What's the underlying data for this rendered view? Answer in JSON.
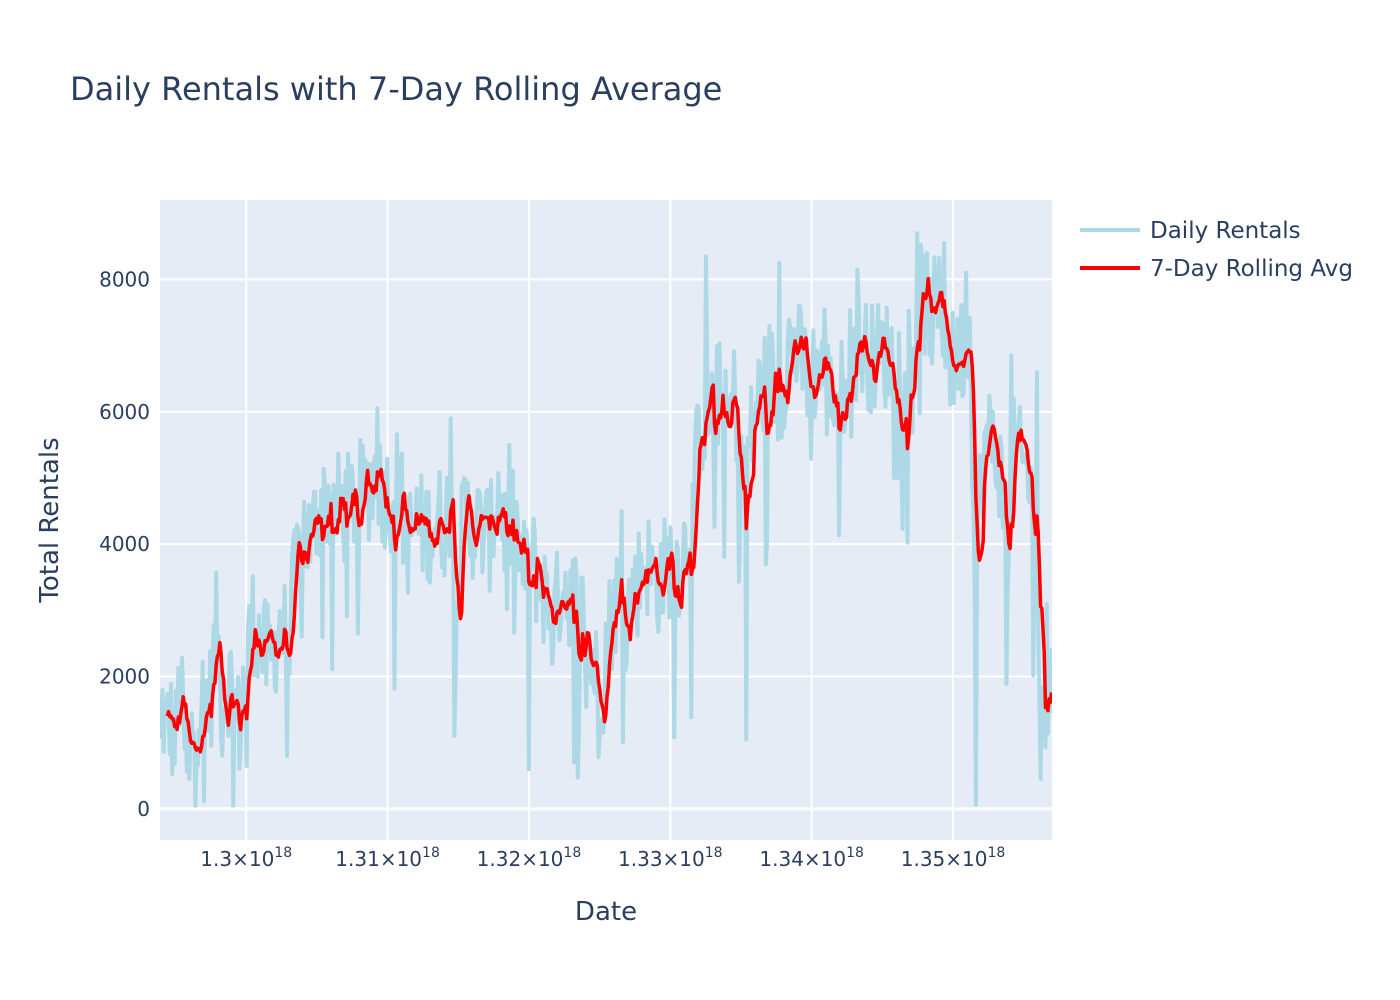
{
  "chart_data": {
    "type": "line",
    "title": "Daily Rentals with 7-Day Rolling Average",
    "xlabel": "Date",
    "ylabel": "Total Rentals",
    "x_note": "x values are dates in nanoseconds since epoch (axis prints 1.xx×10^18)",
    "xlim": [
      1.2939e+18,
      1.357e+18
    ],
    "ylim": [
      -470,
      9200
    ],
    "x_ticks": [
      {
        "value": 1.3e+18,
        "mantissa": "1.3",
        "exp": "18"
      },
      {
        "value": 1.31e+18,
        "mantissa": "1.31",
        "exp": "18"
      },
      {
        "value": 1.32e+18,
        "mantissa": "1.32",
        "exp": "18"
      },
      {
        "value": 1.33e+18,
        "mantissa": "1.33",
        "exp": "18"
      },
      {
        "value": 1.34e+18,
        "mantissa": "1.34",
        "exp": "18"
      },
      {
        "value": 1.35e+18,
        "mantissa": "1.35",
        "exp": "18"
      }
    ],
    "y_ticks": [
      {
        "value": 0,
        "label": "0"
      },
      {
        "value": 2000,
        "label": "2000"
      },
      {
        "value": 4000,
        "label": "4000"
      },
      {
        "value": 6000,
        "label": "6000"
      },
      {
        "value": 8000,
        "label": "8000"
      }
    ],
    "grid": true,
    "legend_position": "top-right",
    "x_start": 1.2939e+18,
    "x_step": 86400000000000.0,
    "series": [
      {
        "name": "Daily Rentals",
        "color": "#add8e6",
        "anchors": [
          [
            1.2939e+18,
            800
          ],
          [
            1.2941e+18,
            1600
          ],
          [
            1.2943e+18,
            1000
          ],
          [
            1.2945e+18,
            1400
          ],
          [
            1.295e+18,
            1000
          ],
          [
            1.2953e+18,
            1900
          ],
          [
            1.2956e+18,
            1100
          ],
          [
            1.2958e+18,
            500
          ],
          [
            1.2962e+18,
            1200
          ],
          [
            1.2967e+18,
            1600
          ],
          [
            1.2975e+18,
            1700
          ],
          [
            1.2979e+18,
            2800
          ],
          [
            1.2983e+18,
            1500
          ],
          [
            1.2988e+18,
            2000
          ],
          [
            1.2995e+18,
            1200
          ],
          [
            1.2999e+18,
            2100
          ],
          [
            1.3005e+18,
            2900
          ],
          [
            1.3011e+18,
            2400
          ],
          [
            1.3018e+18,
            2200
          ],
          [
            1.3023e+18,
            2800
          ],
          [
            1.3028e+18,
            2600
          ],
          [
            1.3035e+18,
            3500
          ],
          [
            1.304e+18,
            4300
          ],
          [
            1.3046e+18,
            4000
          ],
          [
            1.305e+18,
            4500
          ],
          [
            1.3056e+18,
            4700
          ],
          [
            1.3063e+18,
            4600
          ],
          [
            1.307e+18,
            4500
          ],
          [
            1.3078e+18,
            4700
          ],
          [
            1.3085e+18,
            4800
          ],
          [
            1.3092e+18,
            5100
          ],
          [
            1.3096e+18,
            4800
          ],
          [
            1.3103e+18,
            4700
          ],
          [
            1.3108e+18,
            5000
          ],
          [
            1.3113e+18,
            4000
          ],
          [
            1.312e+18,
            4300
          ],
          [
            1.3128e+18,
            4200
          ],
          [
            1.3135e+18,
            4400
          ],
          [
            1.314e+18,
            4300
          ],
          [
            1.3145e+18,
            4700
          ],
          [
            1.315e+18,
            3700
          ],
          [
            1.3155e+18,
            4500
          ],
          [
            1.316e+18,
            4300
          ],
          [
            1.3167e+18,
            4200
          ],
          [
            1.3173e+18,
            4100
          ],
          [
            1.3178e+18,
            4900
          ],
          [
            1.3183e+18,
            4200
          ],
          [
            1.319e+18,
            4300
          ],
          [
            1.3197e+18,
            3500
          ],
          [
            1.3203e+18,
            3700
          ],
          [
            1.321e+18,
            3300
          ],
          [
            1.3217e+18,
            2800
          ],
          [
            1.3224e+18,
            3500
          ],
          [
            1.323e+18,
            3200
          ],
          [
            1.3237e+18,
            3000
          ],
          [
            1.3243e+18,
            2400
          ],
          [
            1.325e+18,
            1800
          ],
          [
            1.3255e+18,
            2600
          ],
          [
            1.3262e+18,
            3200
          ],
          [
            1.3268e+18,
            2900
          ],
          [
            1.3275e+18,
            3300
          ],
          [
            1.3282e+18,
            3800
          ],
          [
            1.329e+18,
            3400
          ],
          [
            1.3296e+18,
            3600
          ],
          [
            1.3302e+18,
            3800
          ],
          [
            1.3308e+18,
            3700
          ],
          [
            1.3315e+18,
            4500
          ],
          [
            1.3321e+18,
            5800
          ],
          [
            1.3328e+18,
            6000
          ],
          [
            1.3335e+18,
            6300
          ],
          [
            1.334e+18,
            5700
          ],
          [
            1.3346e+18,
            6300
          ],
          [
            1.335e+18,
            4900
          ],
          [
            1.3355e+18,
            5400
          ],
          [
            1.3362e+18,
            6200
          ],
          [
            1.337e+18,
            6600
          ],
          [
            1.3377e+18,
            6200
          ],
          [
            1.3384e+18,
            7000
          ],
          [
            1.339e+18,
            6900
          ],
          [
            1.3397e+18,
            6500
          ],
          [
            1.3405e+18,
            6700
          ],
          [
            1.3412e+18,
            6300
          ],
          [
            1.342e+18,
            6200
          ],
          [
            1.3428e+18,
            6900
          ],
          [
            1.3435e+18,
            7000
          ],
          [
            1.3443e+18,
            6800
          ],
          [
            1.345e+18,
            6900
          ],
          [
            1.3457e+18,
            6800
          ],
          [
            1.3465e+18,
            6800
          ],
          [
            1.3472e+18,
            7000
          ],
          [
            1.3478e+18,
            7800
          ],
          [
            1.3484e+18,
            7400
          ],
          [
            1.349e+18,
            7600
          ],
          [
            1.3495e+18,
            6900
          ],
          [
            1.35e+18,
            6700
          ],
          [
            1.3507e+18,
            7000
          ],
          [
            1.3512e+18,
            7100
          ],
          [
            1.3516e+18,
            3500
          ],
          [
            1.3519e+18,
            4800
          ],
          [
            1.3523e+18,
            5500
          ],
          [
            1.3528e+18,
            5600
          ],
          [
            1.3533e+18,
            5200
          ],
          [
            1.3538e+18,
            3800
          ],
          [
            1.3543e+18,
            5400
          ],
          [
            1.3548e+18,
            5200
          ],
          [
            1.3553e+18,
            5100
          ],
          [
            1.3558e+18,
            4000
          ],
          [
            1.3562e+18,
            1600
          ],
          [
            1.357e+18,
            2000
          ]
        ],
        "noise_amplitude": 850,
        "notable_points": [
          [
            1.2938e+18,
            900
          ],
          [
            1.296e+18,
            450
          ],
          [
            1.3e+18,
            650
          ],
          [
            1.3029e+18,
            800
          ],
          [
            1.3062e+18,
            4900
          ],
          [
            1.3093e+18,
            6050
          ],
          [
            1.3145e+18,
            5900
          ],
          [
            1.3147e+18,
            1100
          ],
          [
            1.3186e+18,
            5500
          ],
          [
            1.32e+18,
            600
          ],
          [
            1.3232e+18,
            700
          ],
          [
            1.3249e+18,
            780
          ],
          [
            1.3253e+18,
            1150
          ],
          [
            1.3266e+18,
            4500
          ],
          [
            1.3325e+18,
            8350
          ],
          [
            1.3354e+18,
            1050
          ],
          [
            1.3377e+18,
            8250
          ],
          [
            1.3409e+18,
            7550
          ],
          [
            1.3432e+18,
            8150
          ],
          [
            1.3475e+18,
            8700
          ],
          [
            1.3482e+18,
            8400
          ],
          [
            1.3494e+18,
            8550
          ],
          [
            1.3509e+18,
            8100
          ],
          [
            1.3516e+18,
            60
          ],
          [
            1.3541e+18,
            6850
          ],
          [
            1.3559e+18,
            6600
          ],
          [
            1.3562e+18,
            450
          ],
          [
            1.3566e+18,
            3100
          ]
        ]
      },
      {
        "name": "7-Day Rolling Avg",
        "color": "#ff0000",
        "smoothing_window": 7
      }
    ]
  }
}
